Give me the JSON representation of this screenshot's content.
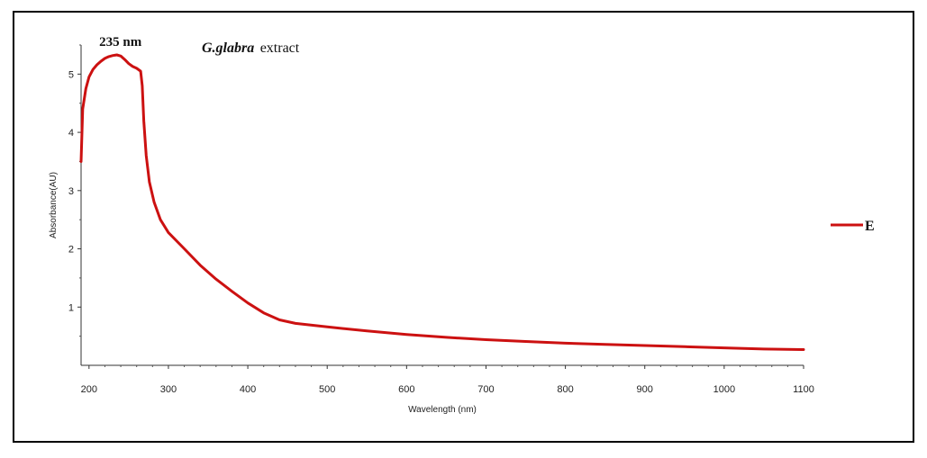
{
  "chart_data": {
    "type": "line",
    "title": {
      "italic": "G.glabra",
      "rest": "extract"
    },
    "annotation": {
      "text": "235 nm",
      "x": 235
    },
    "xlabel": "Wavelength (nm)",
    "ylabel": "Absorbance(AU)",
    "xlim": [
      190,
      1100
    ],
    "ylim": [
      0,
      5.5
    ],
    "xticks": [
      200,
      300,
      400,
      500,
      600,
      700,
      800,
      900,
      1000,
      1100
    ],
    "yticks": [
      1,
      2,
      3,
      4,
      5
    ],
    "grid": false,
    "legend": {
      "position": "right",
      "entries": [
        "E"
      ]
    },
    "series": [
      {
        "name": "E",
        "color": "#cc1111",
        "points": [
          [
            190,
            3.5
          ],
          [
            192,
            4.4
          ],
          [
            196,
            4.75
          ],
          [
            200,
            4.95
          ],
          [
            205,
            5.08
          ],
          [
            210,
            5.16
          ],
          [
            215,
            5.22
          ],
          [
            220,
            5.27
          ],
          [
            225,
            5.3
          ],
          [
            230,
            5.32
          ],
          [
            235,
            5.33
          ],
          [
            240,
            5.31
          ],
          [
            245,
            5.25
          ],
          [
            250,
            5.18
          ],
          [
            255,
            5.13
          ],
          [
            260,
            5.1
          ],
          [
            265,
            5.05
          ],
          [
            267,
            4.8
          ],
          [
            269,
            4.2
          ],
          [
            272,
            3.6
          ],
          [
            276,
            3.15
          ],
          [
            282,
            2.8
          ],
          [
            290,
            2.5
          ],
          [
            300,
            2.28
          ],
          [
            320,
            2.0
          ],
          [
            340,
            1.72
          ],
          [
            360,
            1.48
          ],
          [
            380,
            1.27
          ],
          [
            400,
            1.07
          ],
          [
            420,
            0.9
          ],
          [
            440,
            0.78
          ],
          [
            460,
            0.72
          ],
          [
            500,
            0.66
          ],
          [
            550,
            0.59
          ],
          [
            600,
            0.53
          ],
          [
            650,
            0.48
          ],
          [
            700,
            0.44
          ],
          [
            750,
            0.41
          ],
          [
            800,
            0.38
          ],
          [
            850,
            0.36
          ],
          [
            900,
            0.34
          ],
          [
            950,
            0.32
          ],
          [
            1000,
            0.3
          ],
          [
            1050,
            0.28
          ],
          [
            1100,
            0.27
          ]
        ]
      }
    ]
  }
}
